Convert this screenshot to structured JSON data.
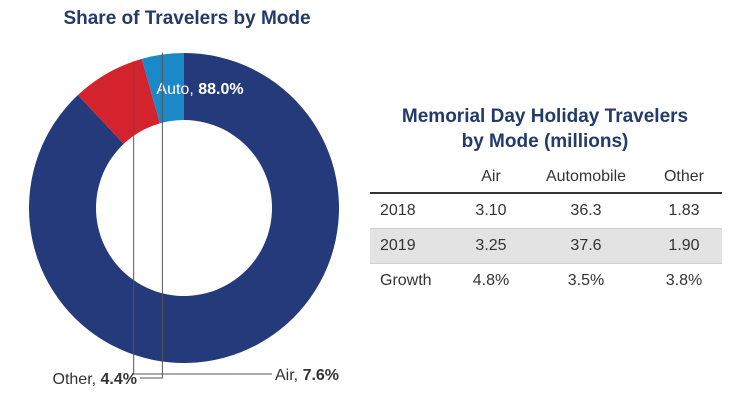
{
  "donut": {
    "title": "Share of Travelers by Mode"
  },
  "table": {
    "title_line1": "Memorial Day Holiday Travelers",
    "title_line2": "by Mode (millions)",
    "columns": [
      "",
      "Air",
      "Automobile",
      "Other"
    ],
    "rows": [
      {
        "label": "2018",
        "values": [
          "3.10",
          "36.3",
          "1.83"
        ]
      },
      {
        "label": "2019",
        "values": [
          "3.25",
          "37.6",
          "1.90"
        ]
      },
      {
        "label": "Growth",
        "values": [
          "4.8%",
          "3.5%",
          "3.8%"
        ]
      }
    ]
  },
  "colors": {
    "auto": "#243a7a",
    "air": "#d3232c",
    "other": "#1b88c8",
    "title": "#243a6b"
  },
  "chart_data": {
    "type": "pie",
    "donut": true,
    "title": "Share of Travelers by Mode",
    "slices": [
      {
        "name": "Auto",
        "value": 88.0,
        "label_name": "Auto, ",
        "label_value": "88.0%",
        "color": "#243a7a"
      },
      {
        "name": "Air",
        "value": 7.6,
        "label_name": "Air, ",
        "label_value": "7.6%",
        "color": "#d3232c"
      },
      {
        "name": "Other",
        "value": 4.4,
        "label_name": "Other, ",
        "label_value": "4.4%",
        "color": "#1b88c8"
      }
    ]
  }
}
